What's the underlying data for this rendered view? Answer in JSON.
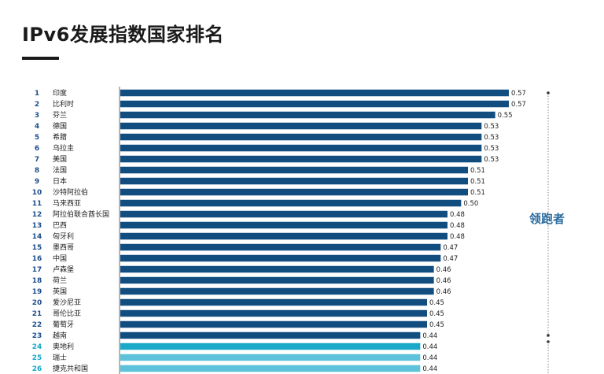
{
  "title": "IPv6发展指数国家排名",
  "leader_label": "领跑者",
  "colors": {
    "bar_default": "#124d80",
    "bar_highlight": "#1ba9c9",
    "bar_light": "#5ec3da",
    "axis": "#444444"
  },
  "chart_data": {
    "type": "bar",
    "orientation": "horizontal",
    "title": "IPv6发展指数国家排名",
    "ranks": [
      1,
      2,
      3,
      4,
      5,
      6,
      7,
      8,
      9,
      10,
      11,
      12,
      13,
      14,
      15,
      16,
      17,
      18,
      19,
      20,
      21,
      22,
      23,
      24,
      25,
      26
    ],
    "categories": [
      "印度",
      "比利时",
      "芬兰",
      "德国",
      "希腊",
      "乌拉圭",
      "美国",
      "法国",
      "日本",
      "沙特阿拉伯",
      "马来西亚",
      "阿拉伯联合酋长国",
      "巴西",
      "匈牙利",
      "墨西哥",
      "中国",
      "卢森堡",
      "荷兰",
      "英国",
      "爱沙尼亚",
      "哥伦比亚",
      "葡萄牙",
      "越南",
      "奥地利",
      "瑞士",
      "捷克共和国"
    ],
    "values": [
      0.57,
      0.57,
      0.55,
      0.53,
      0.53,
      0.53,
      0.53,
      0.51,
      0.51,
      0.51,
      0.5,
      0.48,
      0.48,
      0.48,
      0.47,
      0.47,
      0.46,
      0.46,
      0.46,
      0.45,
      0.45,
      0.45,
      0.44,
      0.44,
      0.44,
      0.44
    ],
    "value_labels": [
      "0.57",
      "0.57",
      "0.55",
      "0.53",
      "0.53",
      "0.53",
      "0.53",
      "0.51",
      "0.51",
      "0.51",
      "0.50",
      "0.48",
      "0.48",
      "0.48",
      "0.47",
      "0.47",
      "0.46",
      "0.46",
      "0.46",
      "0.45",
      "0.45",
      "0.45",
      "0.44",
      "0.44",
      "0.44",
      "0.44"
    ],
    "bar_styles": [
      "default",
      "default",
      "default",
      "default",
      "default",
      "default",
      "default",
      "default",
      "default",
      "default",
      "default",
      "default",
      "default",
      "default",
      "default",
      "default",
      "default",
      "default",
      "default",
      "default",
      "default",
      "default",
      "default",
      "highlight",
      "light",
      "light"
    ],
    "group_label": "领跑者",
    "xlim": [
      0,
      0.57
    ]
  }
}
